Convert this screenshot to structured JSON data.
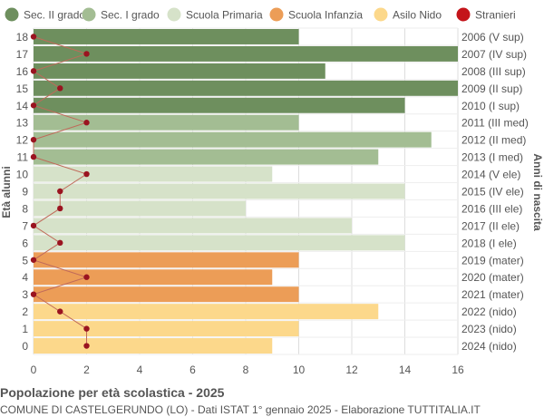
{
  "chart_data": {
    "type": "bar",
    "orientation": "horizontal",
    "ages": [
      18,
      17,
      16,
      15,
      14,
      13,
      12,
      11,
      10,
      9,
      8,
      7,
      6,
      5,
      4,
      3,
      2,
      1,
      0
    ],
    "birth_years": [
      "2006 (V sup)",
      "2007 (IV sup)",
      "2008 (III sup)",
      "2009 (II sup)",
      "2010 (I sup)",
      "2011 (III med)",
      "2012 (II med)",
      "2013 (I med)",
      "2014 (V ele)",
      "2015 (IV ele)",
      "2016 (III ele)",
      "2017 (II ele)",
      "2018 (I ele)",
      "2019 (mater)",
      "2020 (mater)",
      "2021 (mater)",
      "2022 (nido)",
      "2023 (nido)",
      "2024 (nido)"
    ],
    "values": [
      10,
      16,
      11,
      16,
      14,
      10,
      15,
      13,
      9,
      14,
      8,
      12,
      14,
      10,
      9,
      10,
      13,
      10,
      9
    ],
    "school_level": [
      "Sec. II grado",
      "Sec. II grado",
      "Sec. II grado",
      "Sec. II grado",
      "Sec. II grado",
      "Sec. I grado",
      "Sec. I grado",
      "Sec. I grado",
      "Scuola Primaria",
      "Scuola Primaria",
      "Scuola Primaria",
      "Scuola Primaria",
      "Scuola Primaria",
      "Scuola Infanzia",
      "Scuola Infanzia",
      "Scuola Infanzia",
      "Asilo Nido",
      "Asilo Nido",
      "Asilo Nido"
    ],
    "stranieri": [
      0,
      2,
      0,
      1,
      0,
      2,
      0,
      0,
      2,
      1,
      1,
      0,
      1,
      0,
      2,
      0,
      1,
      2,
      2
    ],
    "legend": [
      {
        "name": "Sec. II grado",
        "color": "#6e8f5e"
      },
      {
        "name": "Sec. I grado",
        "color": "#a3bd93"
      },
      {
        "name": "Scuola Primaria",
        "color": "#d6e2c9"
      },
      {
        "name": "Scuola Infanzia",
        "color": "#ec9d57"
      },
      {
        "name": "Asilo Nido",
        "color": "#fcd88b"
      },
      {
        "name": "Stranieri",
        "color": "#c4141a"
      }
    ],
    "x_ticks": [
      0,
      2,
      4,
      6,
      8,
      10,
      12,
      14,
      16
    ],
    "xlim": [
      0,
      16
    ],
    "ylabel_left": "Età alunni",
    "ylabel_right": "Anni di nascita",
    "legend_position": "top",
    "grid": true,
    "stranieri_line_color": "#c06a5a",
    "stranieri_marker_color": "#9a1420"
  },
  "footer": {
    "title": "Popolazione per età scolastica - 2025",
    "subtitle": "COMUNE DI CASTELGERUNDO (LO) - Dati ISTAT 1° gennaio 2025 - Elaborazione TUTTITALIA.IT"
  }
}
